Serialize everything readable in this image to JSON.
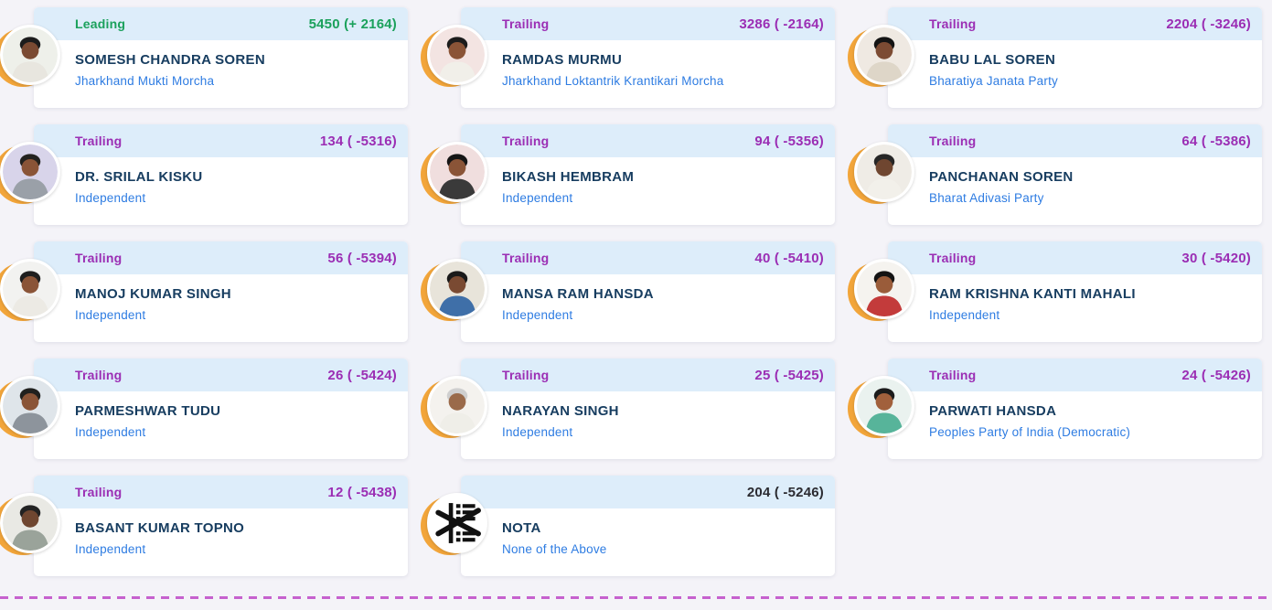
{
  "colors": {
    "page_background": "#f4f3f8",
    "card_background": "#ffffff",
    "band_background": "#ddedfa",
    "leading_text": "#1ba15c",
    "trailing_text": "#9b2eb4",
    "nota_count_text": "#2b2b31",
    "candidate_name_text": "#173d60",
    "party_name_text": "#2e7ce2",
    "avatar_ring": "#f2a53a",
    "divider": "#c661ce"
  },
  "divider": {
    "style": "dashed",
    "color": "#c661ce"
  },
  "cards": [
    {
      "status": "Leading",
      "status_type": "leading",
      "votes": "5450 (+ 2164)",
      "name": "SOMESH CHANDRA SOREN",
      "party": "Jharkhand Mukti Morcha",
      "photo": {
        "bg": "#eef0ea",
        "skin": "#7a4a32",
        "shirt": "#e8e6df",
        "hair": "#1c1c1c"
      }
    },
    {
      "status": "Trailing",
      "status_type": "trailing",
      "votes": "3286 ( -2164)",
      "name": "RAMDAS MURMU",
      "party": "Jharkhand Loktantrik Krantikari Morcha",
      "photo": {
        "bg": "#f3e4e2",
        "skin": "#8a5437",
        "shirt": "#f1efe9",
        "hair": "#1c1c1c"
      }
    },
    {
      "status": "Trailing",
      "status_type": "trailing",
      "votes": "2204 ( -3246)",
      "name": "BABU LAL SOREN",
      "party": "Bharatiya Janata Party",
      "photo": {
        "bg": "#efe9e2",
        "skin": "#7c4b33",
        "shirt": "#ded6c8",
        "hair": "#141414"
      }
    },
    {
      "status": "Trailing",
      "status_type": "trailing",
      "votes": "134 ( -5316)",
      "name": "DR. SRILAL KISKU",
      "party": "Independent",
      "photo": {
        "bg": "#d8d4ea",
        "skin": "#8a5437",
        "shirt": "#9aa0a8",
        "hair": "#23221f"
      }
    },
    {
      "status": "Trailing",
      "status_type": "trailing",
      "votes": "94 ( -5356)",
      "name": "BIKASH HEMBRAM",
      "party": "Independent",
      "photo": {
        "bg": "#f0dede",
        "skin": "#8a5437",
        "shirt": "#3a3a3a",
        "hair": "#161616"
      }
    },
    {
      "status": "Trailing",
      "status_type": "trailing",
      "votes": "64 ( -5386)",
      "name": "PANCHANAN SOREN",
      "party": "Bharat Adivasi Party",
      "photo": {
        "bg": "#efece6",
        "skin": "#6f4630",
        "shirt": "#f2f0ea",
        "hair": "#262626"
      }
    },
    {
      "status": "Trailing",
      "status_type": "trailing",
      "votes": "56 ( -5394)",
      "name": "MANOJ KUMAR SINGH",
      "party": "Independent",
      "photo": {
        "bg": "#f2f2f0",
        "skin": "#8a5437",
        "shirt": "#eceae4",
        "hair": "#1e1e1e"
      }
    },
    {
      "status": "Trailing",
      "status_type": "trailing",
      "votes": "40 ( -5410)",
      "name": "MANSA RAM HANSDA",
      "party": "Independent",
      "photo": {
        "bg": "#e8e4da",
        "skin": "#7a4a32",
        "shirt": "#3f6fa8",
        "hair": "#1a1a1a"
      }
    },
    {
      "status": "Trailing",
      "status_type": "trailing",
      "votes": "30 ( -5420)",
      "name": "RAM KRISHNA KANTI MAHALI",
      "party": "Independent",
      "photo": {
        "bg": "#f5f3ef",
        "skin": "#9a5c3a",
        "shirt": "#c33b3b",
        "hair": "#141414"
      }
    },
    {
      "status": "Trailing",
      "status_type": "trailing",
      "votes": "26 ( -5424)",
      "name": "PARMESHWAR TUDU",
      "party": "Independent",
      "photo": {
        "bg": "#dfe5ea",
        "skin": "#8a5437",
        "shirt": "#8d949c",
        "hair": "#20201e"
      }
    },
    {
      "status": "Trailing",
      "status_type": "trailing",
      "votes": "25 ( -5425)",
      "name": "NARAYAN SINGH",
      "party": "Independent",
      "photo": {
        "bg": "#f4f2ee",
        "skin": "#9a6a4a",
        "shirt": "#efeee8",
        "hair": "#cfcfcf"
      }
    },
    {
      "status": "Trailing",
      "status_type": "trailing",
      "votes": "24 ( -5426)",
      "name": "PARWATI HANSDA",
      "party": "Peoples Party of India (Democratic)",
      "photo": {
        "bg": "#eaf2ef",
        "skin": "#a1603c",
        "shirt": "#57b49a",
        "hair": "#1b1b1b"
      }
    },
    {
      "status": "Trailing",
      "status_type": "trailing",
      "votes": "12 ( -5438)",
      "name": "BASANT KUMAR TOPNO",
      "party": "Independent",
      "photo": {
        "bg": "#e9e9e4",
        "skin": "#6f4630",
        "shirt": "#9aa39a",
        "hair": "#222222"
      }
    },
    {
      "status": "",
      "status_type": "nota",
      "votes": "204 ( -5246)",
      "name": "NOTA",
      "party": "None of the Above",
      "photo": {
        "icon": "nota"
      }
    }
  ]
}
